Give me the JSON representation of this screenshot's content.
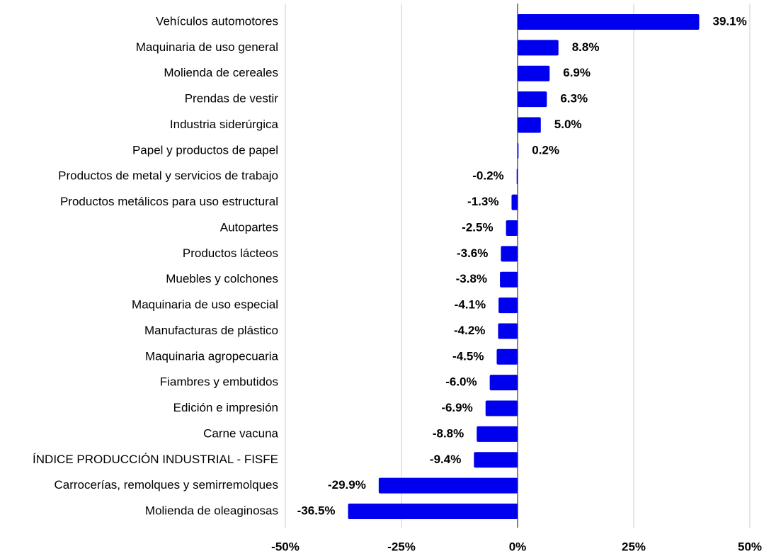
{
  "chart_data": {
    "type": "barh",
    "categories": [
      "Vehículos automotores",
      "Maquinaria de uso general",
      "Molienda de cereales",
      "Prendas de vestir",
      "Industria siderúrgica",
      "Papel y productos de papel",
      "Productos de metal y servicios de trabajo",
      "Productos metálicos para uso estructural",
      "Autopartes",
      "Productos lácteos",
      "Muebles y colchones",
      "Maquinaria de uso especial",
      "Manufacturas de plástico",
      "Maquinaria agropecuaria",
      "Fiambres y embutidos",
      "Edición e impresión",
      "Carne vacuna",
      "ÍNDICE PRODUCCIÓN INDUSTRIAL - FISFE",
      "Carrocerías, remolques y semirremolques",
      "Molienda de oleaginosas"
    ],
    "values": [
      39.1,
      8.8,
      6.9,
      6.3,
      5.0,
      0.2,
      -0.2,
      -1.3,
      -2.5,
      -3.6,
      -3.8,
      -4.1,
      -4.2,
      -4.5,
      -6.0,
      -6.9,
      -8.8,
      -9.4,
      -29.9,
      -36.5
    ],
    "value_labels": [
      "39.1%",
      "8.8%",
      "6.9%",
      "6.3%",
      "5.0%",
      "0.2%",
      "-0.2%",
      "-1.3%",
      "-2.5%",
      "-3.6%",
      "-3.8%",
      "-4.1%",
      "-4.2%",
      "-4.5%",
      "-6.0%",
      "-6.9%",
      "-8.8%",
      "-9.4%",
      "-29.9%",
      "-36.5%"
    ],
    "color": "#0000ee",
    "xlim": [
      -50,
      50
    ],
    "xticks": [
      {
        "value": -50,
        "label": "-50%"
      },
      {
        "value": -25,
        "label": "-25%"
      },
      {
        "value": 0,
        "label": "0%"
      },
      {
        "value": 25,
        "label": "25%"
      },
      {
        "value": 50,
        "label": "50%"
      }
    ],
    "grid": true
  }
}
